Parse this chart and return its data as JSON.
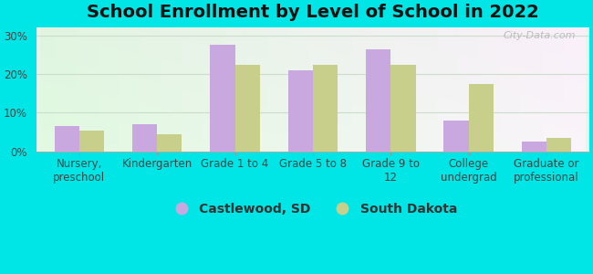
{
  "title": "School Enrollment by Level of School in 2022",
  "categories": [
    "Nursery,\npreschool",
    "Kindergarten",
    "Grade 1 to 4",
    "Grade 5 to 8",
    "Grade 9 to\n12",
    "College\nundergrad",
    "Graduate or\nprofessional"
  ],
  "castlewood": [
    6.5,
    7.0,
    27.5,
    21.0,
    26.5,
    8.0,
    2.5
  ],
  "south_dakota": [
    5.5,
    4.5,
    22.5,
    22.5,
    22.5,
    17.5,
    3.5
  ],
  "castlewood_color": "#c9a8e0",
  "south_dakota_color": "#c8cf8a",
  "background_outer": "#00e5e5",
  "background_inner": "#e8f5ea",
  "ylim": [
    0,
    32
  ],
  "yticks": [
    0,
    10,
    20,
    30
  ],
  "ytick_labels": [
    "0%",
    "10%",
    "20%",
    "30%"
  ],
  "legend_castlewood": "Castlewood, SD",
  "legend_south_dakota": "South Dakota",
  "watermark": "City-Data.com",
  "title_fontsize": 14,
  "axis_fontsize": 8.5,
  "legend_fontsize": 10
}
